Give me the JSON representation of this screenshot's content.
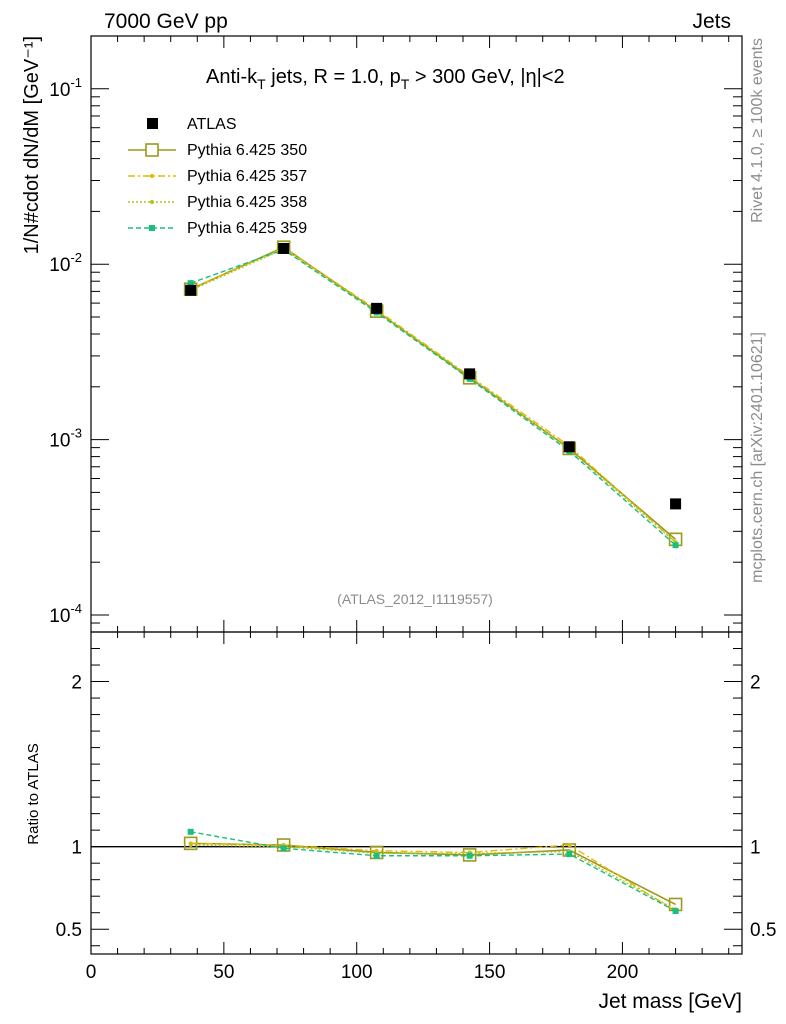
{
  "header": {
    "left": "7000 GeV pp",
    "right": "Jets"
  },
  "side_text": {
    "top": "Rivet 4.1.0, ≥ 100k events",
    "bottom": "mcplots.cern.ch [arXiv:2401.10621]"
  },
  "watermark": "(ATLAS_2012_I1119557)",
  "title": {
    "prefix": "Anti-k",
    "sub1": "T",
    "mid": " jets, R = 1.0, p",
    "sub2": "T",
    "suffix": " > 300 GeV, |η|<2"
  },
  "chart_data": [
    {
      "type": "line",
      "name": "main",
      "ylabel": "1/N#cdot dN/dM [GeV⁻¹]",
      "ylim": [
        8e-05,
        0.2
      ],
      "yscale": "log",
      "xlim": [
        0,
        245
      ],
      "ytick_labels": [
        {
          "base": "10",
          "exp": "-1",
          "value": 0.1
        },
        {
          "base": "10",
          "exp": "-2",
          "value": 0.01
        },
        {
          "base": "10",
          "exp": "-3",
          "value": 0.001
        },
        {
          "base": "10",
          "exp": "-4",
          "value": 0.0001
        }
      ],
      "legend": [
        {
          "name": "ATLAS",
          "color": "#000000"
        },
        {
          "name": "Pythia 6.425 350",
          "color": "#9a9a1e"
        },
        {
          "name": "Pythia 6.425 357",
          "color": "#e6b800"
        },
        {
          "name": "Pythia 6.425 358",
          "color": "#b5c21a"
        },
        {
          "name": "Pythia 6.425 359",
          "color": "#1abf80"
        }
      ],
      "x": [
        37.5,
        72.5,
        107.5,
        142.5,
        180,
        220
      ],
      "series": [
        {
          "name": "ATLAS",
          "values": [
            0.0071,
            0.0123,
            0.0056,
            0.00237,
            0.00091,
            0.00043
          ]
        },
        {
          "name": "Pythia 6.425 350",
          "values": [
            0.0072,
            0.0125,
            0.0054,
            0.00225,
            0.00089,
            0.00027
          ]
        },
        {
          "name": "Pythia 6.425 357",
          "values": [
            0.0072,
            0.0124,
            0.0055,
            0.0023,
            0.00092,
            0.00026
          ]
        },
        {
          "name": "Pythia 6.425 358",
          "values": [
            0.0071,
            0.0122,
            0.0054,
            0.00228,
            0.00088,
            0.00026
          ]
        },
        {
          "name": "Pythia 6.425 359",
          "values": [
            0.0078,
            0.0121,
            0.0053,
            0.00222,
            0.00086,
            0.00025
          ]
        }
      ]
    },
    {
      "type": "line",
      "name": "ratio",
      "ylabel": "Ratio to ATLAS",
      "xlabel": "Jet mass [GeV]",
      "ylim": [
        0.35,
        2.3
      ],
      "xlim": [
        0,
        245
      ],
      "xticks": [
        0,
        50,
        100,
        150,
        200
      ],
      "ytick_labels": [
        "0.5",
        "1",
        "2"
      ],
      "ytick_values": [
        0.5,
        1,
        2
      ],
      "x": [
        37.5,
        72.5,
        107.5,
        142.5,
        180,
        220
      ],
      "series": [
        {
          "name": "Pythia 6.425 350",
          "values": [
            1.02,
            1.01,
            0.965,
            0.95,
            0.98,
            0.65
          ]
        },
        {
          "name": "Pythia 6.425 357",
          "values": [
            1.02,
            1.01,
            0.975,
            0.965,
            1.01,
            0.61
          ]
        },
        {
          "name": "Pythia 6.425 358",
          "values": [
            1.01,
            1.0,
            0.96,
            0.96,
            0.97,
            0.62
          ]
        },
        {
          "name": "Pythia 6.425 359",
          "values": [
            1.09,
            0.99,
            0.945,
            0.945,
            0.955,
            0.61
          ]
        }
      ]
    }
  ]
}
